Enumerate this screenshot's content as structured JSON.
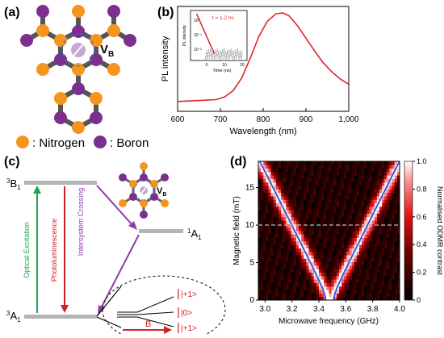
{
  "panels": {
    "a": {
      "label": "(a)",
      "vb_label": "V",
      "vb_sub": "B",
      "legend": [
        {
          "marker_color": "#f7941d",
          "text": ": Nitrogen"
        },
        {
          "marker_color": "#7b2f8e",
          "text": ": Boron"
        }
      ]
    },
    "b": {
      "label": "(b)",
      "ylabel": "PL intensity",
      "xlabel": "Wavelength (nm)",
      "xticks": [
        "600",
        "700",
        "800",
        "900",
        "1,000"
      ],
      "inset": {
        "ylabel": "PL intensity",
        "xlabel": "Time (ns)",
        "annotation": "τ = 1.2 ns",
        "xticks": [
          "0",
          "10",
          "20"
        ],
        "yticks": [
          "10°",
          "10⁻¹",
          "10⁻²"
        ]
      }
    },
    "c": {
      "label": "(c)",
      "levels": {
        "b1_main": "3",
        "b1_sub": "B",
        "b1_idx": "1",
        "a1_singlet_main": "1",
        "a1_singlet_sub": "A",
        "a1_singlet_idx": "1",
        "a1_triplet_main": "3",
        "a1_triplet_sub": "A",
        "a1_triplet_idx": "1"
      },
      "arrows": {
        "excitation": "Optical Excitation",
        "photolum": "Photoluminescence",
        "isc": "Intersystem Crossing"
      },
      "states": [
        "|+1>",
        "|0>",
        "|+1>"
      ],
      "field_label": "B",
      "vb_label": "V",
      "vb_sub": "B"
    },
    "d": {
      "label": "(d)",
      "ylabel": "Magnetic field (mT)",
      "xlabel": "Microwave frequency (GHz)",
      "colorbar_label": "Normalised ODMR contrast",
      "xticks": [
        "3.0",
        "3.2",
        "3.4",
        "3.6",
        "3.8",
        "4.0"
      ],
      "yticks": [
        "0",
        "5",
        "10",
        "15"
      ],
      "cbticks": [
        "0",
        "0.2",
        "0.4",
        "0.6",
        "0.8",
        "1.0"
      ]
    }
  },
  "chart_data": [
    {
      "type": "line",
      "panel": "b",
      "xlabel": "Wavelength (nm)",
      "ylabel": "PL intensity",
      "xlim": [
        600,
        1000
      ],
      "series": [
        {
          "color": "#e0242b",
          "x": [
            600,
            650,
            690,
            710,
            730,
            750,
            770,
            790,
            810,
            830,
            845,
            860,
            880,
            900,
            920,
            940,
            960,
            980,
            1000
          ],
          "y": [
            0.02,
            0.03,
            0.04,
            0.07,
            0.14,
            0.28,
            0.5,
            0.74,
            0.91,
            0.99,
            1.0,
            0.97,
            0.86,
            0.72,
            0.58,
            0.45,
            0.35,
            0.27,
            0.21
          ]
        }
      ]
    },
    {
      "type": "scatter",
      "panel": "b-inset",
      "xlabel": "Time (ns)",
      "ylabel": "PL intensity",
      "xlim": [
        -2,
        22
      ],
      "annotation": "τ = 1.2 ns",
      "series": [
        {
          "color": "#e0242b",
          "x": [
            0,
            0.5,
            1,
            2,
            3,
            4,
            5,
            6,
            7,
            8
          ],
          "y": [
            1.0,
            0.66,
            0.44,
            0.19,
            0.082,
            0.036,
            0.016,
            0.0068,
            0.003,
            0.0013
          ]
        }
      ]
    },
    {
      "type": "heatmap",
      "panel": "d",
      "xlabel": "Microwave frequency (GHz)",
      "ylabel": "Magnetic field (mT)",
      "xlim": [
        2.95,
        4.0
      ],
      "ylim": [
        0,
        18.5
      ],
      "colorbar": {
        "label": "Normalised ODMR contrast",
        "range": [
          0,
          1.0
        ]
      },
      "resonance_center_ghz": 3.48,
      "resonance_slope_ghz_per_mT": 0.028,
      "reference_line_mT": 10
    }
  ]
}
